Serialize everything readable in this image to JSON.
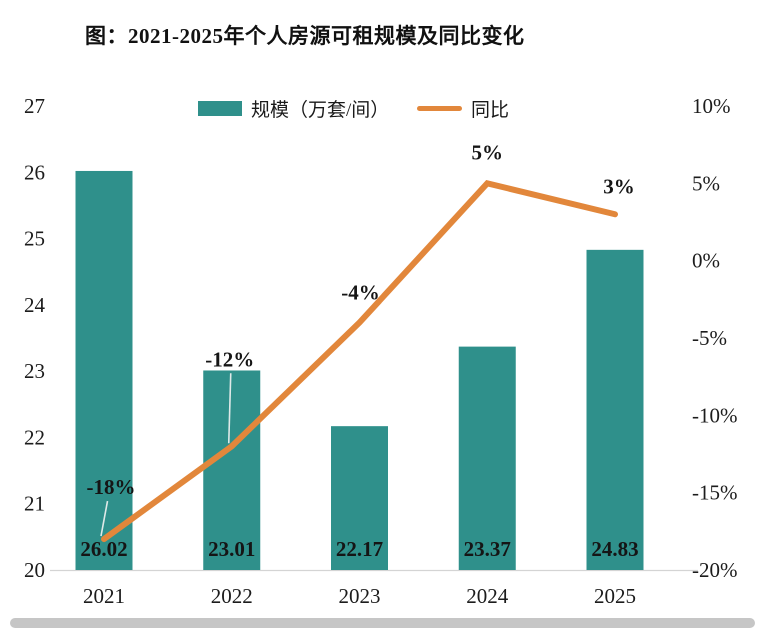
{
  "title": "图：2021-2025年个人房源可租规模及同比变化",
  "legend": {
    "bar_label": "规模（万套/间）",
    "line_label": "同比"
  },
  "colors": {
    "bar": "#2F908B",
    "line": "#E2873B",
    "text": "#1a1a1a",
    "axis_line": "#d4d4d4",
    "leader": "#dfe9e8"
  },
  "chart_data": {
    "type": "bar",
    "subtype": "bar+line combo, dual axis",
    "title": "图：2021-2025年个人房源可租规模及同比变化",
    "categories": [
      "2021",
      "2022",
      "2023",
      "2024",
      "2025"
    ],
    "series": [
      {
        "name": "规模（万套/间）",
        "type": "bar",
        "axis": "left",
        "values": [
          26.02,
          23.01,
          22.17,
          23.37,
          24.83
        ],
        "labels": [
          "26.02",
          "23.01",
          "22.17",
          "23.37",
          "24.83"
        ]
      },
      {
        "name": "同比",
        "type": "line",
        "axis": "right",
        "values": [
          -18,
          -12,
          -4,
          5,
          3
        ],
        "labels": [
          "-18%",
          "-12%",
          "-4%",
          "5%",
          "3%"
        ]
      }
    ],
    "left_axis": {
      "ticks": [
        "27",
        "26",
        "25",
        "24",
        "23",
        "22",
        "21",
        "20"
      ],
      "min": 20,
      "max": 27
    },
    "right_axis": {
      "ticks": [
        "10%",
        "5%",
        "0%",
        "-5%",
        "-10%",
        "-15%",
        "-20%"
      ],
      "min": -20,
      "max": 10
    },
    "grid": "off",
    "legend_position": "top"
  }
}
